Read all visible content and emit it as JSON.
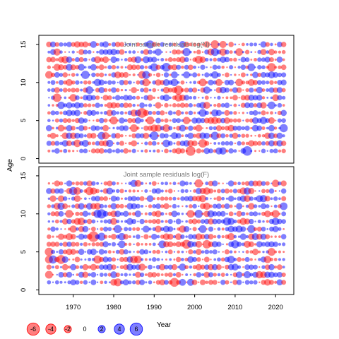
{
  "chart_data": [
    {
      "type": "scatter",
      "title": "Joint sample residuals log(N)",
      "xlabel": "Year",
      "ylabel": "Age",
      "xlim": [
        1961.5,
        2024.5
      ],
      "ylim": [
        -0.6,
        16.2
      ],
      "yticks": [
        0,
        5,
        10,
        15
      ],
      "ages": [
        1,
        15
      ],
      "years": [
        1964,
        2022
      ],
      "series": [
        {
          "name": "positive",
          "color": "#0000ff"
        },
        {
          "name": "negative",
          "color": "#ff0000"
        }
      ]
    },
    {
      "type": "scatter",
      "title": "Joint sample residuals log(F)",
      "xlabel": "Year",
      "ylabel": "Age",
      "xlim": [
        1961.5,
        2024.5
      ],
      "ylim": [
        -0.6,
        16.2
      ],
      "xticks": [
        1970,
        1980,
        1990,
        2000,
        2010,
        2020
      ],
      "yticks": [
        0,
        5,
        10,
        15
      ],
      "ages": [
        1,
        14
      ],
      "years": [
        1964,
        2022
      ],
      "series": [
        {
          "name": "positive",
          "color": "#0000ff"
        },
        {
          "name": "negative",
          "color": "#ff0000"
        }
      ]
    }
  ],
  "figure": {
    "ylabel": "Age",
    "xlabel": "Year"
  },
  "legend": {
    "entries": [
      {
        "label": "-6",
        "value": -6
      },
      {
        "label": "-4",
        "value": -4
      },
      {
        "label": "-2",
        "value": -2
      },
      {
        "label": "0",
        "value": 0
      },
      {
        "label": "2",
        "value": 2
      },
      {
        "label": "4",
        "value": 4
      },
      {
        "label": "6",
        "value": 6
      }
    ],
    "positive_color": "#0000ff",
    "negative_color": "#ff0000"
  }
}
